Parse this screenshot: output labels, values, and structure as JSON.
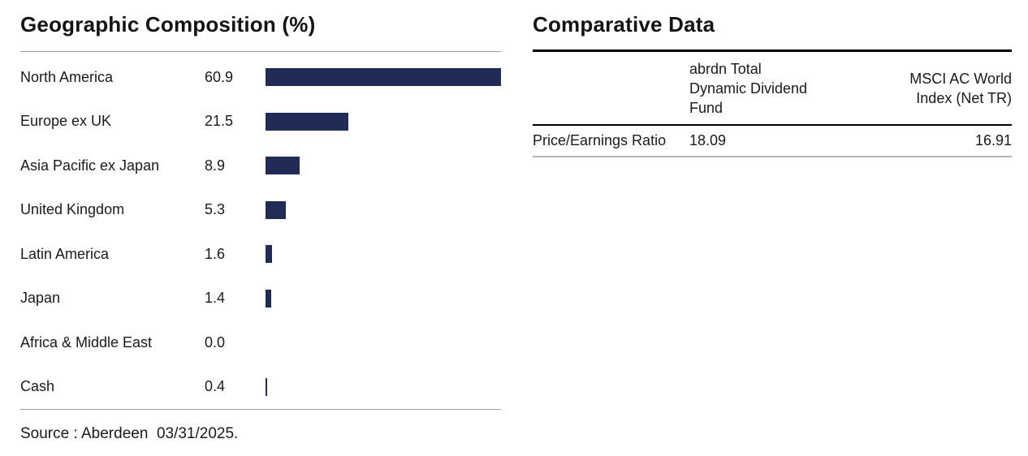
{
  "chart_data": [
    {
      "type": "bar",
      "orientation": "horizontal",
      "title": "Geographic Composition (%)",
      "categories": [
        "North America",
        "Europe ex UK",
        "Asia Pacific ex Japan",
        "United Kingdom",
        "Latin America",
        "Japan",
        "Africa & Middle East",
        "Cash"
      ],
      "values": [
        60.9,
        21.5,
        8.9,
        5.3,
        1.6,
        1.4,
        0.0,
        0.4
      ],
      "value_labels": [
        "60.9",
        "21.5",
        "8.9",
        "5.3",
        "1.6",
        "1.4",
        "0.0",
        "0.4"
      ],
      "xlim": [
        0,
        60.9
      ],
      "grid": false,
      "legend": "none",
      "bar_color": "#202b56",
      "source": "Source : Aberdeen  03/31/2025."
    },
    {
      "type": "table",
      "title": "Comparative Data",
      "columns": [
        "",
        "abrdn Total Dynamic Dividend Fund",
        "MSCI AC World Index (Net TR)"
      ],
      "column_displays": [
        "",
        "abrdn Total\nDynamic Dividend\nFund",
        "MSCI AC World\nIndex (Net TR)"
      ],
      "rows": [
        [
          "Price/Earnings Ratio",
          "18.09",
          "16.91"
        ]
      ]
    }
  ]
}
